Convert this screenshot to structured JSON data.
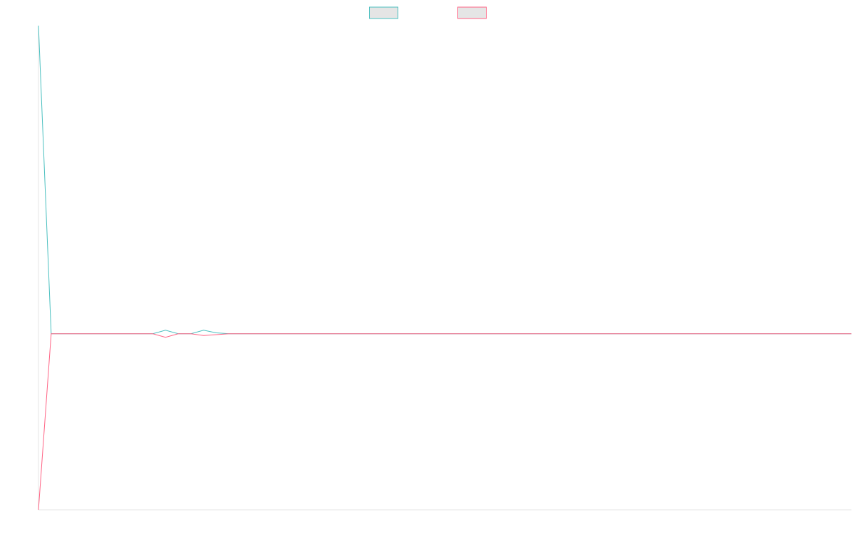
{
  "chart_data": {
    "type": "line",
    "title": "",
    "xlabel": "",
    "ylabel": "",
    "grid": false,
    "legend_placement": "top-center",
    "x": [
      0,
      1,
      2,
      3,
      4,
      5,
      6,
      7,
      8,
      9,
      10,
      11,
      12,
      13,
      14,
      15,
      16,
      17,
      18,
      19,
      20,
      21,
      22,
      23,
      24,
      25,
      26,
      27,
      28,
      29,
      30,
      31,
      32,
      33,
      34,
      35,
      36,
      37,
      38,
      39,
      40,
      41,
      42,
      43,
      44,
      45,
      46,
      47,
      48,
      49,
      50,
      51,
      52,
      53,
      54,
      55,
      56,
      57,
      58,
      59,
      60,
      61,
      62,
      63,
      64
    ],
    "xlim": [
      0,
      64
    ],
    "ylim": [
      -1,
      1.75
    ],
    "series": [
      {
        "color": "#4bc0c0",
        "fill": "#e5e5e5",
        "values": [
          1.75,
          0,
          0,
          0,
          0,
          0,
          0,
          0,
          0,
          0,
          0.02,
          0,
          0,
          0.02,
          0.005,
          0,
          0,
          0,
          0,
          0,
          0,
          0,
          0,
          0,
          0,
          0,
          0,
          0,
          0,
          0,
          0,
          0,
          0,
          0,
          0,
          0,
          0,
          0,
          0,
          0,
          0,
          0,
          0,
          0,
          0,
          0,
          0,
          0,
          0,
          0,
          0,
          0,
          0,
          0,
          0,
          0,
          0,
          0,
          0,
          0,
          0,
          0,
          0,
          0,
          0
        ]
      },
      {
        "color": "#ff6384",
        "fill": "#e5e5e5",
        "values": [
          -1,
          0,
          0,
          0,
          0,
          0,
          0,
          0,
          0,
          0,
          -0.02,
          0,
          0,
          -0.01,
          -0.005,
          0,
          0,
          0,
          0,
          0,
          0,
          0,
          0,
          0,
          0,
          0,
          0,
          0,
          0,
          0,
          0,
          0,
          0,
          0,
          0,
          0,
          0,
          0,
          0,
          0,
          0,
          0,
          0,
          0,
          0,
          0,
          0,
          0,
          0,
          0,
          0,
          0,
          0,
          0,
          0,
          0,
          0,
          0,
          0,
          0,
          0,
          0,
          0,
          0,
          0
        ]
      }
    ]
  }
}
